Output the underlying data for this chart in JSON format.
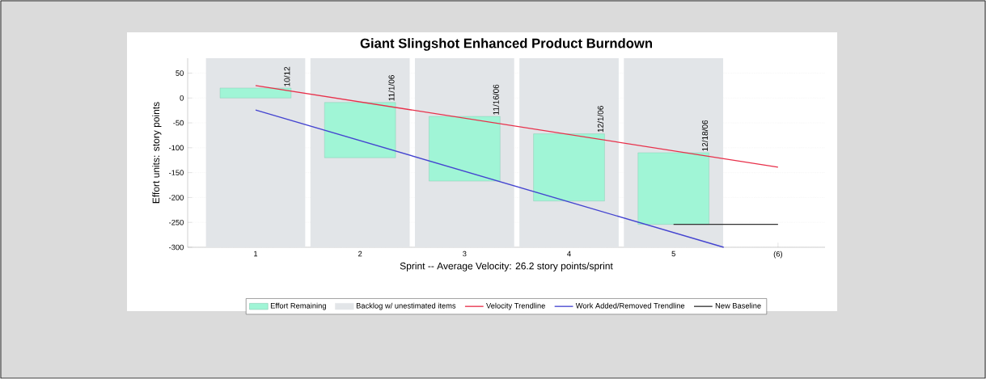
{
  "chart_data": {
    "type": "bar",
    "title": "Giant Slingshot Enhanced Product Burndown",
    "xlabel": "Sprint -- Average Velocity: 26.2 story points/sprint",
    "ylabel": "Effort units: story points",
    "x": [
      1,
      2,
      3,
      4,
      5
    ],
    "xlim": [
      0.35,
      6.45
    ],
    "xticks": [
      1,
      2,
      3,
      4,
      5,
      {
        "value": 6,
        "label": "(6)"
      }
    ],
    "ylim": [
      -300,
      80
    ],
    "yticks": [
      -300,
      -250,
      -200,
      -150,
      -100,
      -50,
      0,
      50
    ],
    "grid": "y",
    "legend": "bottom",
    "marker": "none",
    "series": [
      {
        "name": "Effort Remaining",
        "color": "#a0f5d6",
        "base": [
          0,
          -120,
          -167,
          -207,
          -254
        ],
        "values": [
          20,
          111,
          130,
          135,
          144
        ]
      },
      {
        "name": "Backlog w/ unestimated items",
        "color": "#e2e5e8",
        "base": [
          -300,
          -300,
          -300,
          -300,
          -300
        ],
        "values": [
          380,
          380,
          380,
          380,
          380
        ]
      },
      {
        "name": "Velocity Trendline",
        "type": "line",
        "color": "#e8304a",
        "x": [
          1,
          6
        ],
        "values": [
          25,
          -139
        ]
      },
      {
        "name": "Work Added/Removed Trendline",
        "type": "line",
        "color": "#4444d0",
        "x": [
          1,
          5.48
        ],
        "values": [
          -24,
          -300
        ]
      },
      {
        "name": "New Baseline",
        "type": "line",
        "color": "#333333",
        "x": [
          5,
          6
        ],
        "values": [
          -254,
          -254
        ]
      }
    ],
    "annotations": [
      {
        "text": "10/12",
        "x": 1.3,
        "y": 20
      },
      {
        "text": "11/1/06",
        "x": 2.3,
        "y": -9
      },
      {
        "text": "11/16/06",
        "x": 3.3,
        "y": -37
      },
      {
        "text": "12/1/06",
        "x": 4.3,
        "y": -72
      },
      {
        "text": "12/18/06",
        "x": 5.3,
        "y": -110
      }
    ]
  }
}
